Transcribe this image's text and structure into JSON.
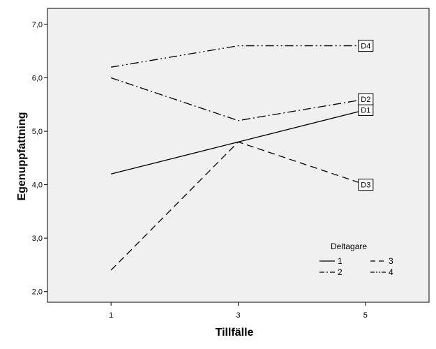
{
  "chart_data": {
    "type": "line",
    "xlabel": "Tillfälle",
    "ylabel": "Egenuppfattning",
    "x": [
      1,
      3,
      5
    ],
    "x_tick_labels": [
      "1",
      "3",
      "5"
    ],
    "xlim": [
      0,
      6
    ],
    "ylim": [
      1.8,
      7.3
    ],
    "y_ticks": [
      2,
      3,
      4,
      5,
      6,
      7
    ],
    "y_tick_labels": [
      "2,0",
      "3,0",
      "4,0",
      "5,0",
      "6,0",
      "7,0"
    ],
    "grid": false,
    "legend": {
      "title": "Deltagare",
      "placement": "bottom-right"
    },
    "plot_background": "#f0f0f0",
    "series": [
      {
        "name": "1",
        "end_label": "D1",
        "dash": "solid",
        "values": [
          4.2,
          4.8,
          5.4
        ]
      },
      {
        "name": "2",
        "end_label": "D2",
        "dash": "dash-dot",
        "values": [
          6.0,
          5.2,
          5.6
        ]
      },
      {
        "name": "3",
        "end_label": "D3",
        "dash": "dash",
        "values": [
          2.4,
          4.8,
          4.0
        ]
      },
      {
        "name": "4",
        "end_label": "D4",
        "dash": "dash-dot-dot",
        "values": [
          6.2,
          6.6,
          6.6
        ]
      }
    ]
  }
}
